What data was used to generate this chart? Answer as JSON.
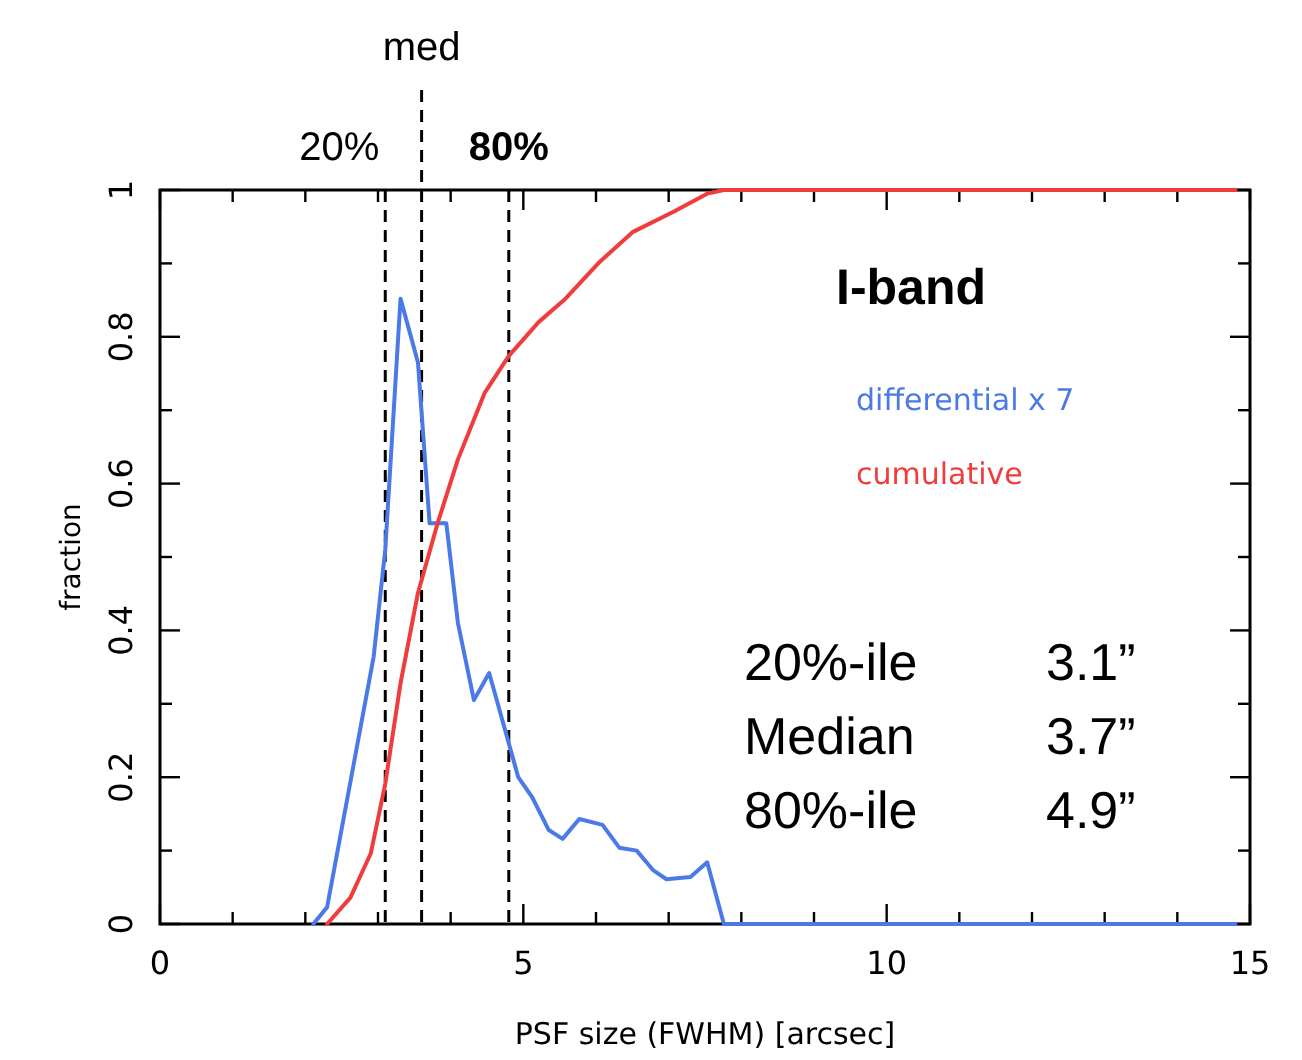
{
  "chart_data": {
    "type": "line",
    "xlabel": "PSF size (FWHM) [arcsec]",
    "ylabel": "fraction",
    "xlim": [
      0,
      15
    ],
    "ylim": [
      0,
      1
    ],
    "xticks": [
      0,
      {
        "value": 1,
        "label": null
      },
      {
        "value": 2,
        "label": null
      },
      {
        "value": 3,
        "label": null
      },
      {
        "value": 4,
        "label": null
      },
      5,
      {
        "value": 6,
        "label": null
      },
      {
        "value": 7,
        "label": null
      },
      {
        "value": 8,
        "label": null
      },
      {
        "value": 9,
        "label": null
      },
      10,
      {
        "value": 11,
        "label": null
      },
      {
        "value": 12,
        "label": null
      },
      {
        "value": 13,
        "label": null
      },
      {
        "value": 14,
        "label": null
      },
      15
    ],
    "yticks": [
      0,
      {
        "value": 0.1,
        "label": null
      },
      0.2,
      {
        "value": 0.3,
        "label": null
      },
      0.4,
      {
        "value": 0.5,
        "label": null
      },
      0.6,
      {
        "value": 0.7,
        "label": null
      },
      0.8,
      {
        "value": 0.9,
        "label": null
      },
      1
    ],
    "grid": false,
    "legend": "right",
    "marker": "none",
    "line_style": "solid",
    "series": [
      {
        "name": "differential x 7",
        "color": "#4a7ae8",
        "x": [
          2.11,
          2.3,
          2.94,
          3.1,
          3.31,
          3.55,
          3.71,
          3.94,
          4.1,
          4.32,
          4.53,
          4.93,
          5.12,
          5.35,
          5.54,
          5.77,
          6.09,
          6.32,
          6.56,
          6.79,
          6.97,
          7.3,
          7.53,
          7.76,
          14.8
        ],
        "values": [
          0,
          0.023,
          0.364,
          0.51,
          0.852,
          0.765,
          0.546,
          0.546,
          0.41,
          0.305,
          0.342,
          0.2,
          0.173,
          0.128,
          0.116,
          0.143,
          0.135,
          0.104,
          0.1,
          0.073,
          0.061,
          0.064,
          0.084,
          0,
          0
        ]
      },
      {
        "name": "cumulative",
        "color": "#f03c3c",
        "x": [
          2.3,
          2.62,
          2.9,
          3.1,
          3.31,
          3.55,
          3.82,
          4.1,
          4.47,
          4.8,
          5.21,
          5.58,
          6.05,
          6.51,
          7.06,
          7.53,
          7.76,
          14.8
        ],
        "values": [
          0,
          0.036,
          0.096,
          0.191,
          0.328,
          0.451,
          0.546,
          0.633,
          0.724,
          0.774,
          0.82,
          0.852,
          0.902,
          0.943,
          0.97,
          0.995,
          1,
          1
        ]
      }
    ],
    "ref_lines": [
      {
        "axis": "x",
        "value": 3.1,
        "line_style": "dashed",
        "color": "#000000"
      },
      {
        "axis": "x",
        "value": 3.6,
        "line_style": "dashed",
        "color": "#000000"
      },
      {
        "axis": "x",
        "value": 4.8,
        "line_style": "dashed",
        "color": "#000000"
      }
    ],
    "annotations": [
      "20%",
      "med",
      "80%",
      "I-band",
      "20%-ile 3.1”",
      "Median 3.7”",
      "80%-ile 4.9”"
    ]
  }
}
